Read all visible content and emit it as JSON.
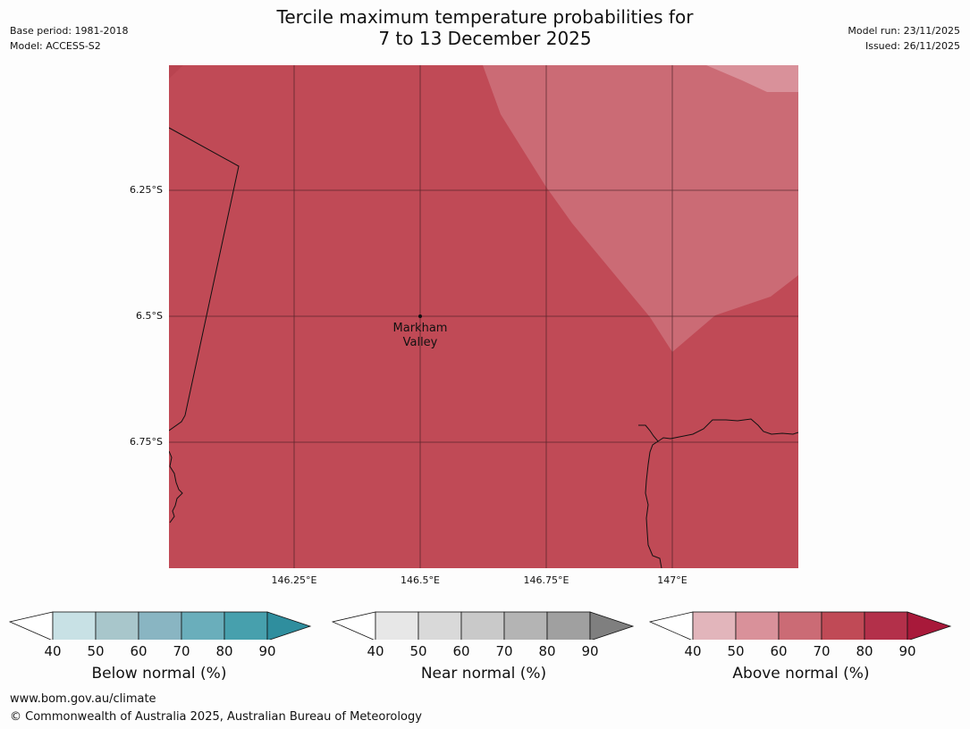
{
  "header": {
    "base_period": "Base period: 1981-2018",
    "model": "Model: ACCESS-S2",
    "title_line1": "Tercile maximum temperature probabilities for",
    "title_line2": "7 to 13 December 2025",
    "model_run": "Model run: 23/11/2025",
    "issued": "Issued: 26/11/2025"
  },
  "map": {
    "lat_labels": [
      "6.25°S",
      "6.5°S",
      "6.75°S"
    ],
    "lon_labels": [
      "146.25°E",
      "146.5°E",
      "146.75°E",
      "147°E"
    ],
    "place": {
      "name_line1": "Markham",
      "name_line2": "Valley"
    },
    "fill_colors": {
      "above_70_80": "#c04a56",
      "above_60_70": "#cb6b75",
      "above_50_60": "#d9919a"
    }
  },
  "legends": [
    {
      "title": "Below normal (%)",
      "ticks": [
        "40",
        "50",
        "60",
        "70",
        "80",
        "90"
      ],
      "colors": [
        "#ffffff",
        "#c8e1e5",
        "#a8c6cb",
        "#89b5c2",
        "#6aaebb",
        "#47a0ad",
        "#2f8e9e"
      ]
    },
    {
      "title": "Near normal (%)",
      "ticks": [
        "40",
        "50",
        "60",
        "70",
        "80",
        "90"
      ],
      "colors": [
        "#ffffff",
        "#e7e7e7",
        "#d9d9d9",
        "#c9c9c9",
        "#b4b4b4",
        "#a0a0a0",
        "#7f7f7f"
      ]
    },
    {
      "title": "Above normal (%)",
      "ticks": [
        "40",
        "50",
        "60",
        "70",
        "80",
        "90"
      ],
      "colors": [
        "#ffffff",
        "#e2b5bb",
        "#d9919a",
        "#cb6b75",
        "#c04a56",
        "#b3304a",
        "#a8193a"
      ]
    }
  ],
  "footer": {
    "url": "www.bom.gov.au/climate",
    "copyright": "© Commonwealth of Australia 2025, Australian Bureau of Meteorology"
  }
}
